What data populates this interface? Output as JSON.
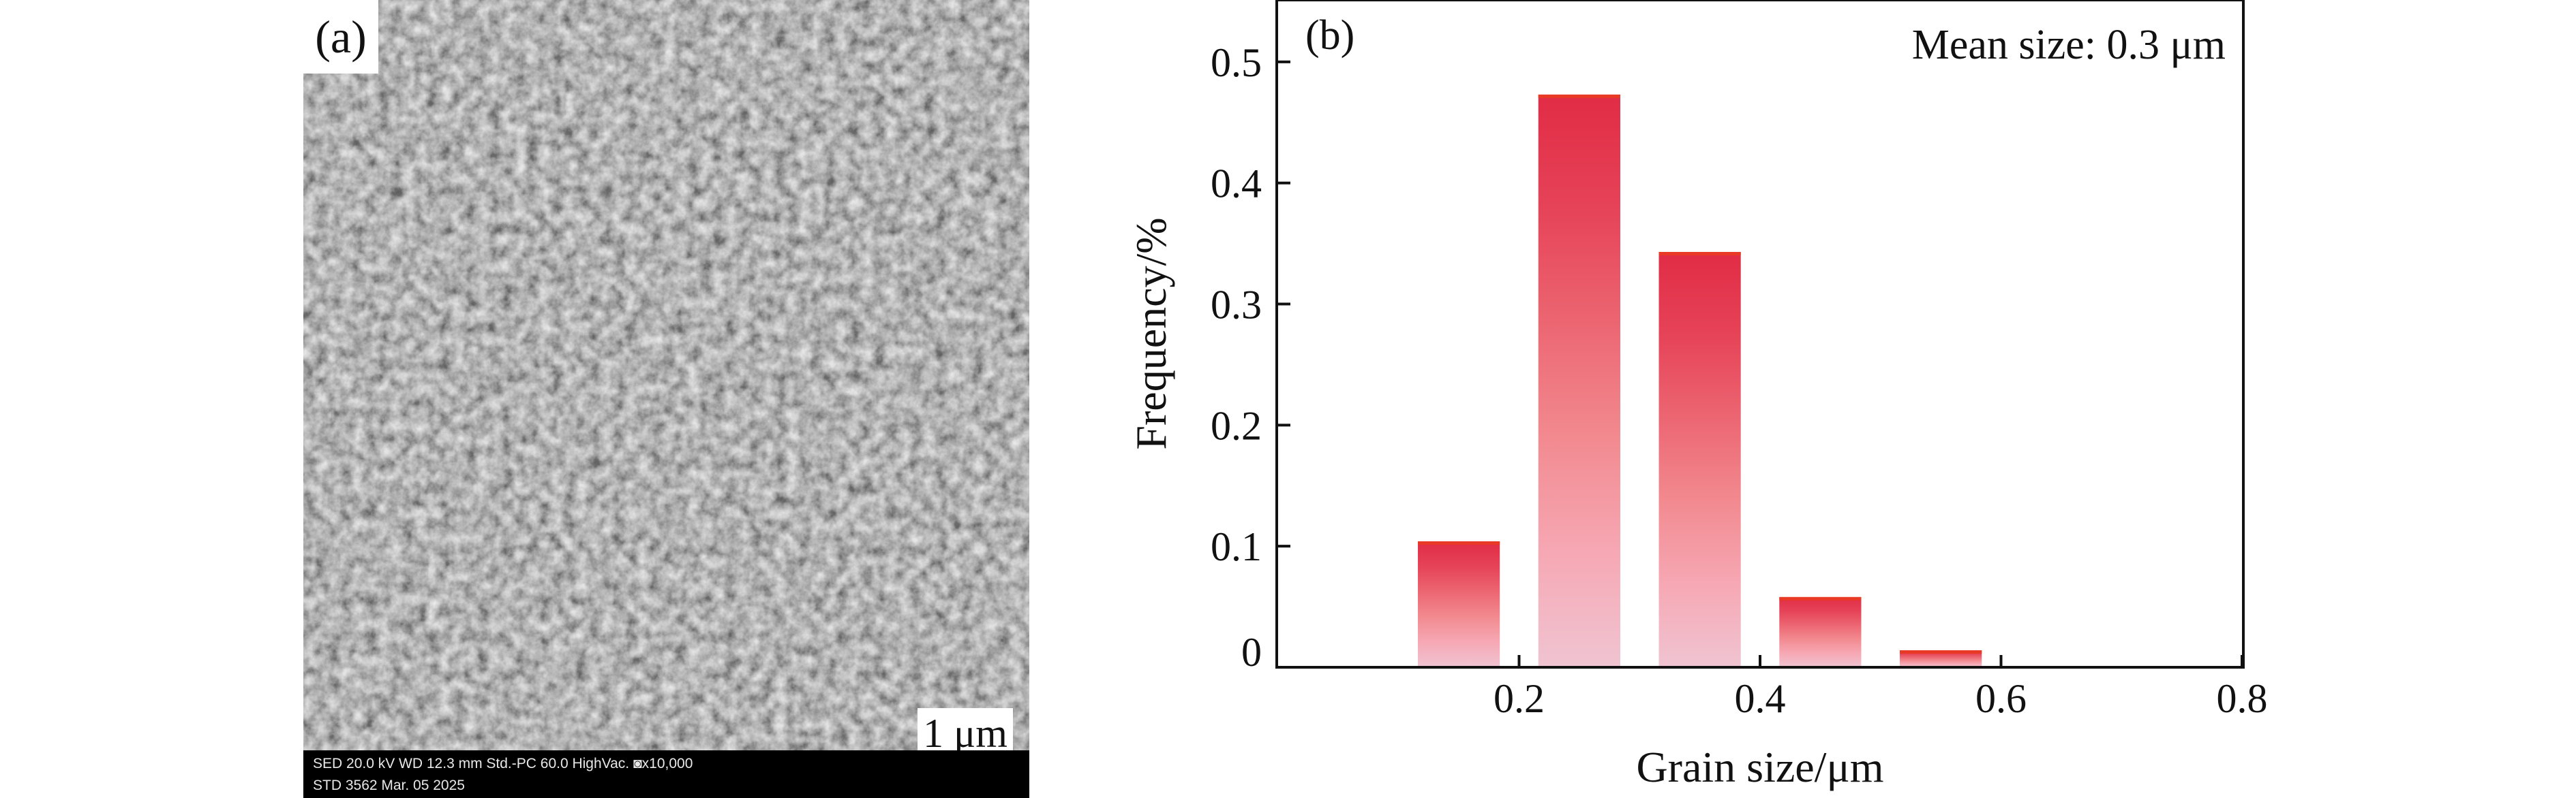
{
  "panel_a": {
    "label": "(a)",
    "scale_bar_label": "1 μm",
    "info_line_1": "SED   20.0 kV  WD 12.3 mm    Std.-PC 60.0    HighVac.  ◙x10,000",
    "info_line_2": "STD    3562    Mar. 05 2025"
  },
  "chart_data": {
    "type": "bar",
    "panel_label": "(b)",
    "annotation": "Mean size: 0.3 μm",
    "xlabel": "Grain size/μm",
    "ylabel": "Frequency/%",
    "xlim": [
      0,
      0.8
    ],
    "ylim": [
      0,
      0.55
    ],
    "bar_width": 0.068,
    "x": [
      0.15,
      0.25,
      0.35,
      0.45,
      0.55
    ],
    "values": [
      0.104,
      0.473,
      0.343,
      0.058,
      0.014
    ],
    "xticks": [
      0.2,
      0.4,
      0.6,
      0.8
    ],
    "xtick_labels": [
      "0.2",
      "0.4",
      "0.6",
      "0.8"
    ],
    "yticks": [
      0,
      0.1,
      0.2,
      0.3,
      0.4,
      0.5
    ],
    "ytick_labels": [
      "0",
      "0.1",
      "0.2",
      "0.3",
      "0.4",
      "0.5"
    ],
    "grid": false,
    "legend": "none",
    "colors": {
      "bar_gradient": [
        "#f0c4d2",
        "#f6a8b4",
        "#f28a90",
        "#ec6672",
        "#e64358",
        "#e12c45"
      ],
      "bar_top": "#e83a24",
      "axis": "#111111"
    }
  }
}
